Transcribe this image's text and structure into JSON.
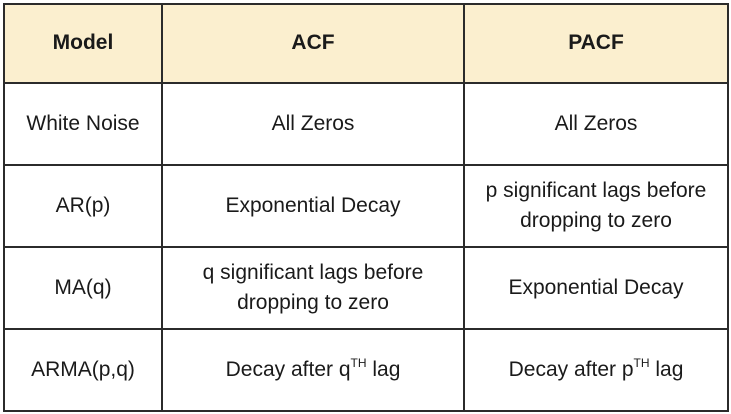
{
  "table": {
    "headers": [
      "Model",
      "ACF",
      "PACF"
    ],
    "rows": [
      {
        "model": "White Noise",
        "acf": {
          "text": "All Zeros",
          "sup": "",
          "after": ""
        },
        "pacf": {
          "text": "All Zeros",
          "sup": "",
          "after": ""
        }
      },
      {
        "model": "AR(p)",
        "acf": {
          "text": "Exponential Decay",
          "sup": "",
          "after": ""
        },
        "pacf": {
          "text": "p significant lags before dropping to zero",
          "sup": "",
          "after": ""
        }
      },
      {
        "model": "MA(q)",
        "acf": {
          "text": "q significant lags before dropping to zero",
          "sup": "",
          "after": ""
        },
        "pacf": {
          "text": "Exponential Decay",
          "sup": "",
          "after": ""
        }
      },
      {
        "model": "ARMA(p,q)",
        "acf": {
          "text": "Decay after q",
          "sup": "TH",
          "after": " lag"
        },
        "pacf": {
          "text": "Decay after p",
          "sup": "TH",
          "after": " lag"
        }
      }
    ],
    "colors": {
      "header_bg": "#fbefcf",
      "border": "#2b2b2b",
      "text": "#1a1a1a"
    }
  }
}
